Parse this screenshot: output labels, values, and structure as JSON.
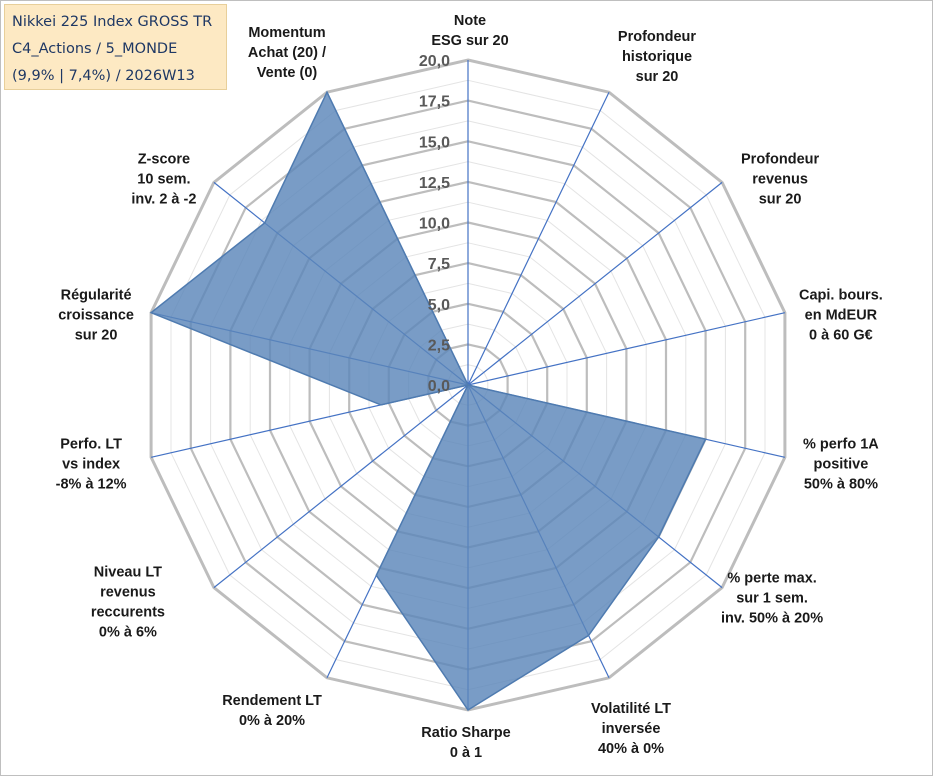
{
  "header": {
    "title_lines": [
      "Nikkei 225 Index GROSS TR",
      "C4_Actions / 5_MONDE",
      "(9,9% | 7,4%) / 2026W13"
    ]
  },
  "chart_data": {
    "type": "radar",
    "title": "Nikkei 225 Index GROSS TR",
    "rmin": 0,
    "rmax": 20,
    "ticks": [
      0,
      2.5,
      5,
      7.5,
      10,
      12.5,
      15,
      17.5,
      20
    ],
    "tick_labels": [
      "0,0",
      "2,5",
      "5,0",
      "7,5",
      "10,0",
      "12,5",
      "15,0",
      "17,5",
      "20,0"
    ],
    "categories": [
      [
        "Note",
        "ESG sur 20"
      ],
      [
        "Profondeur",
        "historique",
        "sur 20"
      ],
      [
        "Profondeur",
        "revenus",
        "sur 20"
      ],
      [
        "Capi. bours.",
        "en MdEUR",
        "0 à 60 G€"
      ],
      [
        "% perfo 1A",
        "positive",
        "50% à 80%"
      ],
      [
        "% perte max.",
        "sur 1 sem.",
        "inv. 50% à 20%"
      ],
      [
        "Volatilité LT",
        "inversée",
        "40% à 0%"
      ],
      [
        "Ratio Sharpe",
        "0 à 1"
      ],
      [
        "Rendement LT",
        "0% à 20%"
      ],
      [
        "Niveau LT",
        "revenus",
        "reccurents",
        "0% à 6%"
      ],
      [
        "Perfo. LT",
        "vs index",
        "-8% à 12%"
      ],
      [
        "Régularité",
        "croissance",
        "sur 20"
      ],
      [
        "Z-score",
        "10 sem.",
        "inv. 2 à -2"
      ],
      [
        "Momentum",
        "Achat (20) /",
        "Vente (0)"
      ]
    ],
    "series": [
      {
        "name": "Nikkei 225 Index GROSS TR",
        "color": "#4f7bb0",
        "fill": "#5b86b9",
        "values": [
          0,
          0,
          0,
          0,
          15,
          15,
          17.1,
          20,
          13,
          0,
          5.5,
          20,
          16,
          20
        ]
      }
    ]
  }
}
